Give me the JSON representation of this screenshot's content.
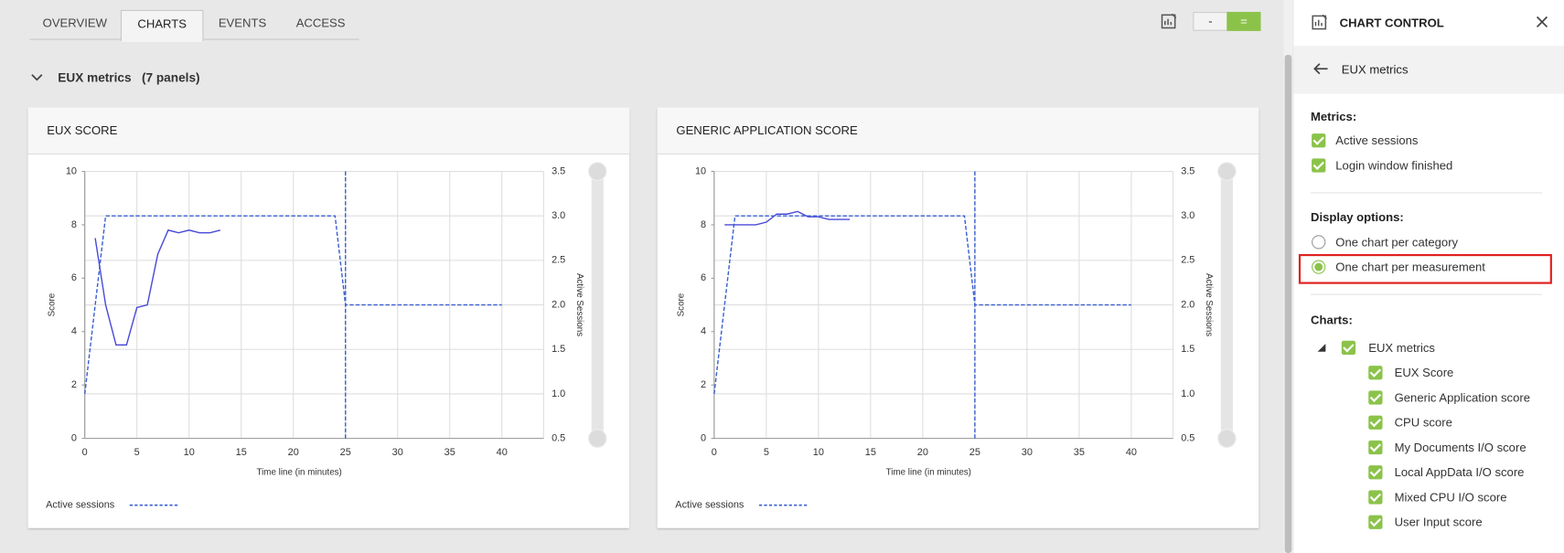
{
  "tabs": [
    "OVERVIEW",
    "CHARTS",
    "EVENTS",
    "ACCESS"
  ],
  "section": {
    "title": "EUX metrics",
    "count": "(7 panels)"
  },
  "toolbar": {
    "minus": "-",
    "equal": "="
  },
  "chart_data": [
    {
      "type": "line",
      "title": "EUX SCORE",
      "ylabel": "Score",
      "y2label": "Active Sessions",
      "xlabel": "Time line (in minutes)",
      "xlim": [
        0,
        44
      ],
      "xticks": [
        0,
        5,
        10,
        15,
        20,
        25,
        30,
        35,
        40
      ],
      "ylim": [
        0,
        10
      ],
      "yticks": [
        0,
        2,
        4,
        6,
        8,
        10
      ],
      "y2lim": [
        0.5,
        3.5
      ],
      "y2ticks": [
        0.5,
        {
          "value": 1,
          "label": "1.0"
        },
        1.5,
        {
          "value": 2,
          "label": "2.0"
        },
        2.5,
        {
          "value": 3,
          "label": "3.0"
        },
        3.5
      ],
      "x_marker": 25,
      "grid": true,
      "series": [
        {
          "color": "#4a4ad8",
          "dashed": false,
          "x": [
            1,
            2,
            3,
            4,
            5,
            6,
            7,
            8,
            9,
            10,
            11,
            12,
            13
          ],
          "values": [
            7.5,
            5,
            3.5,
            3.5,
            4.9,
            5,
            6.9,
            7.8,
            7.7,
            7.8,
            7.7,
            7.7,
            7.8
          ]
        },
        {
          "name": "Active sessions",
          "color": "#3a5fd0",
          "dashed": true,
          "axis": "y2",
          "x": [
            0,
            2,
            24,
            25,
            40
          ],
          "values": [
            1,
            3,
            3,
            2,
            2
          ]
        }
      ]
    },
    {
      "type": "line",
      "title": "GENERIC APPLICATION SCORE",
      "ylabel": "Score",
      "y2label": "Active Sessions",
      "xlabel": "Time line (in minutes)",
      "xlim": [
        0,
        44
      ],
      "xticks": [
        0,
        5,
        10,
        15,
        20,
        25,
        30,
        35,
        40
      ],
      "ylim": [
        0,
        10
      ],
      "yticks": [
        0,
        2,
        4,
        6,
        8,
        10
      ],
      "y2lim": [
        0.5,
        3.5
      ],
      "y2ticks": [
        0.5,
        {
          "value": 1,
          "label": "1.0"
        },
        1.5,
        {
          "value": 2,
          "label": "2.0"
        },
        2.5,
        {
          "value": 3,
          "label": "3.0"
        },
        3.5
      ],
      "x_marker": 25,
      "grid": true,
      "series": [
        {
          "color": "#4a4ad8",
          "dashed": false,
          "x": [
            1,
            2,
            3,
            4,
            5,
            6,
            7,
            8,
            9,
            10,
            11,
            12,
            13
          ],
          "values": [
            8,
            8,
            8,
            8,
            8.1,
            8.4,
            8.4,
            8.5,
            8.3,
            8.3,
            8.2,
            8.2,
            8.2
          ]
        },
        {
          "name": "Active sessions",
          "color": "#3a5fd0",
          "dashed": true,
          "axis": "y2",
          "x": [
            0,
            2,
            24,
            25,
            40
          ],
          "values": [
            1,
            3,
            3,
            2,
            2
          ]
        }
      ]
    }
  ],
  "panel": {
    "title": "CHART CONTROL",
    "back": "EUX metrics",
    "metrics_label": "Metrics:",
    "metrics": [
      "Active sessions",
      "Login window finished"
    ],
    "display_label": "Display options:",
    "display": [
      "One chart per category",
      "One chart per measurement"
    ],
    "charts_label": "Charts:",
    "root": "EUX metrics",
    "charts": [
      "EUX Score",
      "Generic Application score",
      "CPU score",
      "My Documents I/O score",
      "Local AppData I/O score",
      "Mixed CPU I/O score",
      "User Input score"
    ]
  }
}
